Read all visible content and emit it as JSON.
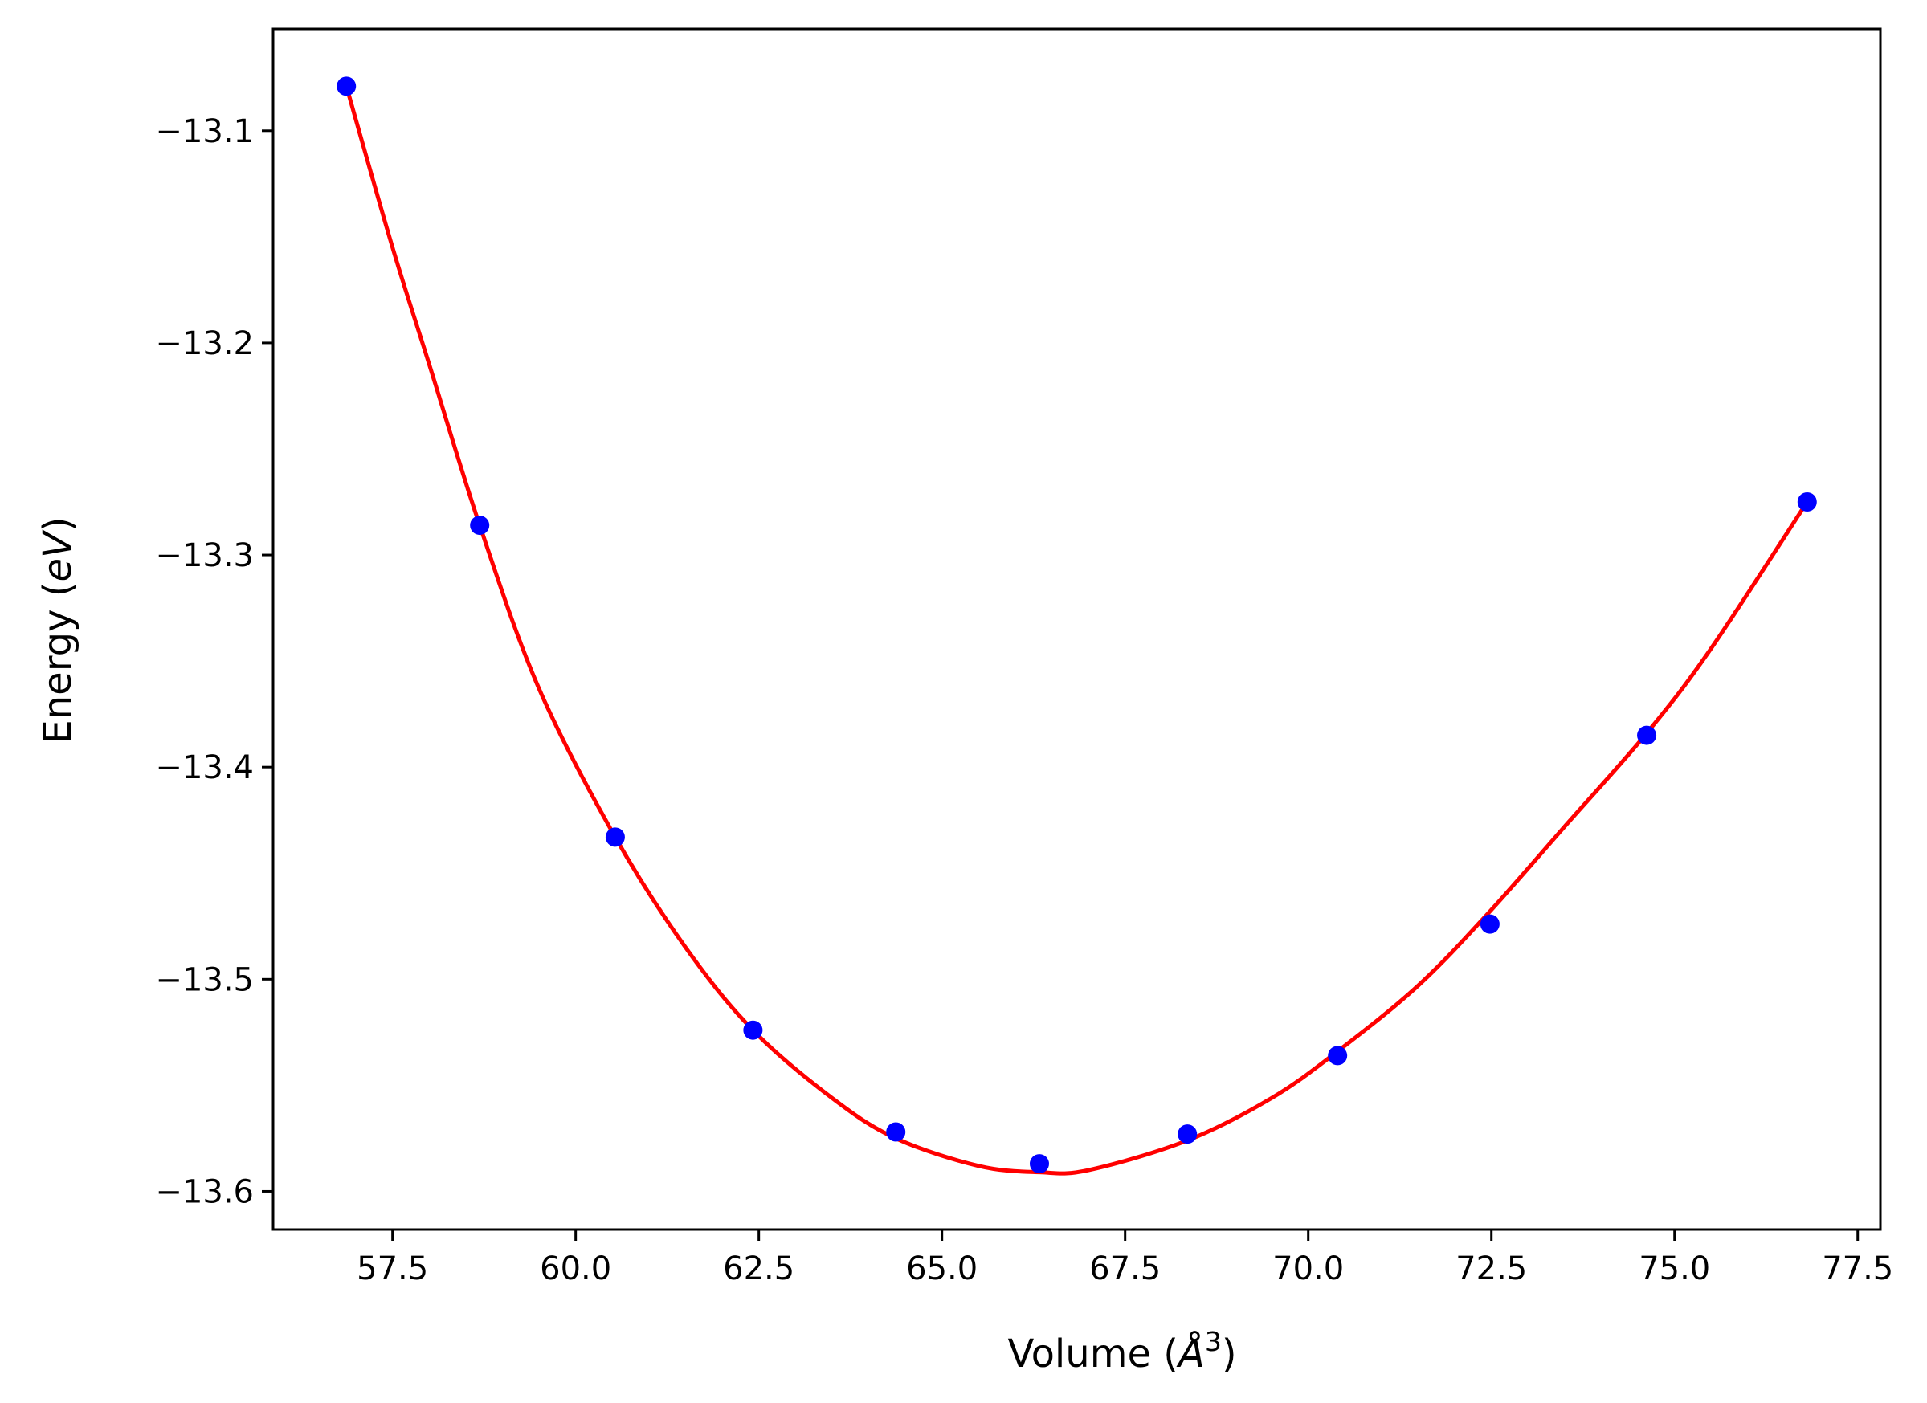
{
  "chart_data": {
    "type": "scatter",
    "title": "",
    "xlabel": "Volume ($\\AA^3$)",
    "ylabel": "Energy ($eV$)",
    "xlabel_parts": {
      "prefix": "Volume (",
      "symbol": "Å",
      "exponent": "3",
      "suffix": ")"
    },
    "ylabel_parts": {
      "prefix": "Energy (",
      "symbol": "eV",
      "suffix": ")"
    },
    "xlim": [
      55.87,
      77.81
    ],
    "ylim": [
      -13.618,
      -13.052
    ],
    "x_ticks": [
      57.5,
      60.0,
      62.5,
      65.0,
      67.5,
      70.0,
      72.5,
      75.0,
      77.5
    ],
    "x_tick_labels": [
      "57.5",
      "60.0",
      "62.5",
      "65.0",
      "67.5",
      "70.0",
      "72.5",
      "75.0",
      "77.5"
    ],
    "y_ticks": [
      -13.1,
      -13.2,
      -13.3,
      -13.4,
      -13.5,
      -13.6
    ],
    "y_tick_labels": [
      "−13.1",
      "−13.2",
      "−13.3",
      "−13.4",
      "−13.5",
      "−13.6"
    ],
    "grid": false,
    "series": [
      {
        "kind": "points",
        "color": "#0000ff",
        "x": [
          56.87,
          58.69,
          60.54,
          62.42,
          64.37,
          66.33,
          68.35,
          70.4,
          72.48,
          74.62,
          76.81
        ],
        "y": [
          -13.079,
          -13.286,
          -13.433,
          -13.524,
          -13.572,
          -13.587,
          -13.573,
          -13.536,
          -13.474,
          -13.385,
          -13.275
        ]
      },
      {
        "kind": "fit-curve",
        "color": "#ff0000",
        "x": [
          56.87,
          57.5,
          58.0,
          58.69,
          59.5,
          60.54,
          61.5,
          62.42,
          63.5,
          64.37,
          65.5,
          66.33,
          67.0,
          68.35,
          69.5,
          70.4,
          71.5,
          72.48,
          73.5,
          74.62,
          75.5,
          76.81
        ],
        "y": [
          -13.079,
          -13.155,
          -13.21,
          -13.286,
          -13.363,
          -13.433,
          -13.485,
          -13.524,
          -13.556,
          -13.575,
          -13.588,
          -13.591,
          -13.59,
          -13.576,
          -13.556,
          -13.534,
          -13.503,
          -13.468,
          -13.428,
          -13.384,
          -13.344,
          -13.275
        ]
      }
    ]
  }
}
